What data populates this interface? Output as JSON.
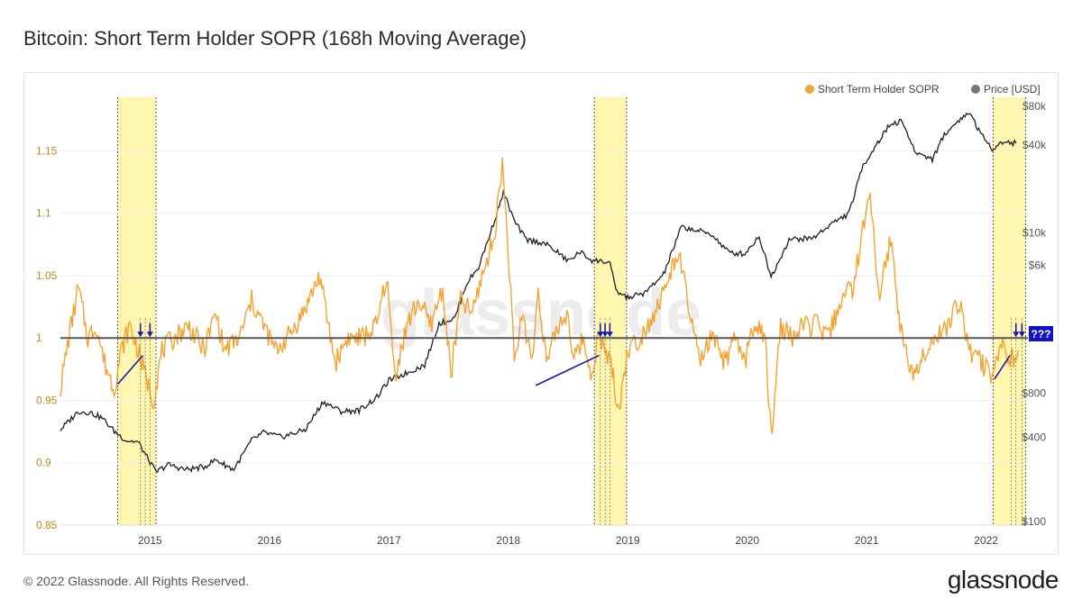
{
  "header": {
    "title": "Bitcoin: Short Term Holder SOPR (168h Moving Average)"
  },
  "footer": {
    "copyright": "© 2022 Glassnode. All Rights Reserved.",
    "logo_text": "glassnode"
  },
  "chart_data": {
    "type": "line",
    "title": "Bitcoin: Short Term Holder SOPR (168h Moving Average)",
    "watermark": "glassnode",
    "annotation_label": "???",
    "colors": {
      "sopr": "#f5a330",
      "price": "#1f1f1f",
      "highlight": "#fff7b0",
      "annotation": "#1a1aa8",
      "baseline": "#555555"
    },
    "x_range": [
      2014.25,
      2022.35
    ],
    "x_ticks": [
      {
        "value": 2015,
        "label": "2015"
      },
      {
        "value": 2016,
        "label": "2016"
      },
      {
        "value": 2017,
        "label": "2017"
      },
      {
        "value": 2018,
        "label": "2018"
      },
      {
        "value": 2019,
        "label": "2019"
      },
      {
        "value": 2020,
        "label": "2020"
      },
      {
        "value": 2021,
        "label": "2021"
      },
      {
        "value": 2022,
        "label": "2022"
      }
    ],
    "left_axis": {
      "name": "Short Term Holder SOPR",
      "range": [
        0.85,
        1.19
      ],
      "ticks": [
        {
          "value": 1.15,
          "label": "1.15"
        },
        {
          "value": 1.1,
          "label": "1.1"
        },
        {
          "value": 1.05,
          "label": "1.05"
        },
        {
          "value": 1,
          "label": "1"
        },
        {
          "value": 0.95,
          "label": "0.95"
        },
        {
          "value": 0.9,
          "label": "0.9"
        },
        {
          "value": 0.85,
          "label": "0.85"
        }
      ]
    },
    "right_axis": {
      "name": "Price [USD]",
      "scale": "log",
      "range": [
        100,
        80000
      ],
      "ticks": [
        {
          "value": 80000,
          "label": "$80k"
        },
        {
          "value": 40000,
          "label": "$40k"
        },
        {
          "value": 10000,
          "label": "$10k"
        },
        {
          "value": 6000,
          "label": "$6k"
        },
        {
          "value": 800,
          "label": "$800"
        },
        {
          "value": 400,
          "label": "$400"
        },
        {
          "value": 100,
          "label": "$100"
        }
      ]
    },
    "legend": [
      {
        "label": "Short Term Holder SOPR",
        "color": "#f5a330"
      },
      {
        "label": "Price [USD]",
        "color": "#777777"
      }
    ],
    "highlight_bands": [
      {
        "start": 2014.73,
        "end": 2015.05
      },
      {
        "start": 2018.72,
        "end": 2018.99
      },
      {
        "start": 2022.06,
        "end": 2022.33
      }
    ],
    "baseline": 1,
    "sopr_anchors": [
      [
        2014.25,
        0.96
      ],
      [
        2014.32,
        1.0
      ],
      [
        2014.4,
        1.04
      ],
      [
        2014.48,
        1.0
      ],
      [
        2014.55,
        1.01
      ],
      [
        2014.62,
        0.98
      ],
      [
        2014.7,
        0.96
      ],
      [
        2014.76,
        0.99
      ],
      [
        2014.83,
        1.01
      ],
      [
        2014.9,
        0.99
      ],
      [
        2014.96,
        0.97
      ],
      [
        2015.03,
        0.95
      ],
      [
        2015.1,
        0.99
      ],
      [
        2015.2,
        1.0
      ],
      [
        2015.32,
        1.01
      ],
      [
        2015.45,
        0.99
      ],
      [
        2015.55,
        1.02
      ],
      [
        2015.62,
        0.99
      ],
      [
        2015.75,
        1.0
      ],
      [
        2015.85,
        1.03
      ],
      [
        2015.95,
        1.01
      ],
      [
        2016.05,
        0.99
      ],
      [
        2016.15,
        1.0
      ],
      [
        2016.28,
        1.02
      ],
      [
        2016.42,
        1.05
      ],
      [
        2016.55,
        0.98
      ],
      [
        2016.65,
        1.0
      ],
      [
        2016.78,
        1.0
      ],
      [
        2016.9,
        1.01
      ],
      [
        2016.98,
        1.05
      ],
      [
        2017.05,
        0.97
      ],
      [
        2017.15,
        1.01
      ],
      [
        2017.25,
        1.03
      ],
      [
        2017.35,
        1.01
      ],
      [
        2017.45,
        1.04
      ],
      [
        2017.52,
        0.97
      ],
      [
        2017.6,
        1.03
      ],
      [
        2017.7,
        1.02
      ],
      [
        2017.78,
        1.05
      ],
      [
        2017.88,
        1.08
      ],
      [
        2017.95,
        1.14
      ],
      [
        2018.0,
        1.07
      ],
      [
        2018.05,
        0.98
      ],
      [
        2018.12,
        1.02
      ],
      [
        2018.2,
        0.98
      ],
      [
        2018.25,
        1.04
      ],
      [
        2018.32,
        0.98
      ],
      [
        2018.42,
        1.01
      ],
      [
        2018.5,
        1.02
      ],
      [
        2018.55,
        0.98
      ],
      [
        2018.62,
        1.0
      ],
      [
        2018.7,
        0.97
      ],
      [
        2018.75,
        1.0
      ],
      [
        2018.82,
        0.99
      ],
      [
        2018.88,
        0.97
      ],
      [
        2018.92,
        0.94
      ],
      [
        2019.0,
        0.99
      ],
      [
        2019.1,
        1.0
      ],
      [
        2019.22,
        1.02
      ],
      [
        2019.32,
        1.04
      ],
      [
        2019.42,
        1.07
      ],
      [
        2019.52,
        1.02
      ],
      [
        2019.6,
        0.98
      ],
      [
        2019.7,
        1.0
      ],
      [
        2019.82,
        0.98
      ],
      [
        2019.9,
        1.0
      ],
      [
        2019.98,
        0.98
      ],
      [
        2020.05,
        1.01
      ],
      [
        2020.15,
        1.0
      ],
      [
        2020.2,
        0.92
      ],
      [
        2020.28,
        1.01
      ],
      [
        2020.38,
        1.0
      ],
      [
        2020.48,
        1.01
      ],
      [
        2020.58,
        1.01
      ],
      [
        2020.68,
        1.0
      ],
      [
        2020.78,
        1.03
      ],
      [
        2020.88,
        1.04
      ],
      [
        2020.96,
        1.08
      ],
      [
        2021.03,
        1.12
      ],
      [
        2021.1,
        1.03
      ],
      [
        2021.2,
        1.08
      ],
      [
        2021.28,
        1.01
      ],
      [
        2021.38,
        0.97
      ],
      [
        2021.48,
        0.99
      ],
      [
        2021.58,
        1.0
      ],
      [
        2021.68,
        1.01
      ],
      [
        2021.78,
        1.03
      ],
      [
        2021.86,
        0.99
      ],
      [
        2021.96,
        0.98
      ],
      [
        2022.06,
        0.97
      ],
      [
        2022.12,
        1.0
      ],
      [
        2022.2,
        0.98
      ],
      [
        2022.27,
        0.99
      ]
    ],
    "price_anchors": [
      [
        2014.25,
        450
      ],
      [
        2014.4,
        600
      ],
      [
        2014.5,
        590
      ],
      [
        2014.6,
        540
      ],
      [
        2014.7,
        440
      ],
      [
        2014.8,
        380
      ],
      [
        2014.9,
        370
      ],
      [
        2015.0,
        270
      ],
      [
        2015.05,
        230
      ],
      [
        2015.15,
        260
      ],
      [
        2015.3,
        240
      ],
      [
        2015.45,
        250
      ],
      [
        2015.55,
        280
      ],
      [
        2015.7,
        240
      ],
      [
        2015.85,
        380
      ],
      [
        2015.95,
        430
      ],
      [
        2016.1,
        400
      ],
      [
        2016.3,
        450
      ],
      [
        2016.45,
        700
      ],
      [
        2016.6,
        600
      ],
      [
        2016.75,
        610
      ],
      [
        2016.9,
        750
      ],
      [
        2017.0,
        980
      ],
      [
        2017.15,
        1100
      ],
      [
        2017.3,
        1250
      ],
      [
        2017.42,
        2400
      ],
      [
        2017.55,
        2600
      ],
      [
        2017.65,
        4500
      ],
      [
        2017.75,
        5800
      ],
      [
        2017.85,
        10000
      ],
      [
        2017.96,
        19000
      ],
      [
        2018.05,
        12000
      ],
      [
        2018.15,
        9000
      ],
      [
        2018.3,
        8500
      ],
      [
        2018.4,
        7500
      ],
      [
        2018.5,
        6400
      ],
      [
        2018.6,
        7400
      ],
      [
        2018.7,
        6500
      ],
      [
        2018.85,
        6300
      ],
      [
        2018.9,
        4000
      ],
      [
        2019.0,
        3600
      ],
      [
        2019.15,
        3900
      ],
      [
        2019.3,
        5200
      ],
      [
        2019.45,
        11000
      ],
      [
        2019.55,
        10500
      ],
      [
        2019.7,
        9800
      ],
      [
        2019.85,
        7300
      ],
      [
        2019.98,
        7200
      ],
      [
        2020.1,
        9500
      ],
      [
        2020.2,
        5000
      ],
      [
        2020.35,
        9000
      ],
      [
        2020.55,
        9200
      ],
      [
        2020.7,
        11500
      ],
      [
        2020.85,
        13500
      ],
      [
        2020.97,
        29000
      ],
      [
        2021.08,
        40000
      ],
      [
        2021.2,
        56000
      ],
      [
        2021.3,
        58000
      ],
      [
        2021.4,
        36000
      ],
      [
        2021.55,
        32000
      ],
      [
        2021.65,
        47000
      ],
      [
        2021.8,
        62000
      ],
      [
        2021.87,
        66000
      ],
      [
        2021.95,
        48000
      ],
      [
        2022.05,
        38000
      ],
      [
        2022.15,
        42000
      ],
      [
        2022.25,
        41000
      ]
    ],
    "trend_lines": [
      {
        "x1": 2014.73,
        "y1": 0.963,
        "x2": 2014.94,
        "y2": 0.986
      },
      {
        "x1": 2018.23,
        "y1": 0.962,
        "x2": 2018.76,
        "y2": 0.986
      },
      {
        "x1": 2022.07,
        "y1": 0.967,
        "x2": 2022.2,
        "y2": 0.986
      }
    ],
    "arrow_markers": [
      2014.92,
      2015.0,
      2018.77,
      2018.81,
      2018.85,
      2022.25,
      2022.3
    ],
    "dotted_markers": [
      2014.92,
      2014.96,
      2015.0,
      2018.77,
      2018.81,
      2018.85,
      2022.21,
      2022.25,
      2022.3
    ]
  }
}
